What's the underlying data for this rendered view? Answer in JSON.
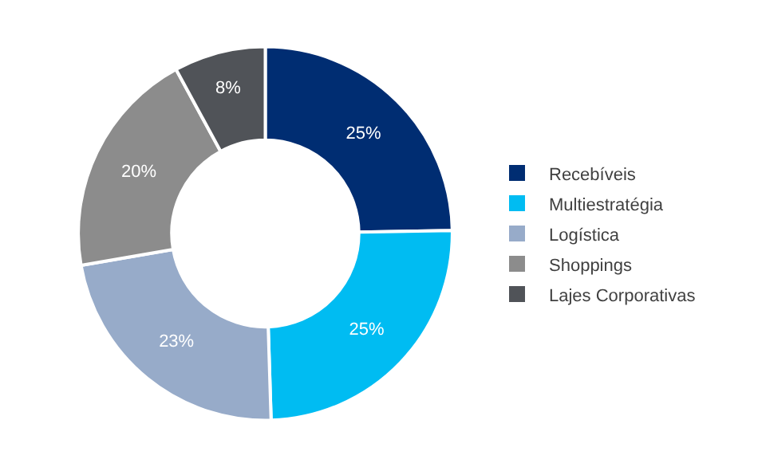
{
  "chart_data": {
    "type": "donut",
    "categories": [
      "Recebíveis",
      "Multiestratégia",
      "Logística",
      "Shoppings",
      "Lajes Corporativas"
    ],
    "values": [
      25,
      25,
      23,
      20,
      8
    ],
    "value_labels": [
      "25%",
      "25%",
      "23%",
      "20%",
      "8%"
    ],
    "colors": [
      "#002d72",
      "#00bcf2",
      "#97abc9",
      "#8c8c8c",
      "#505358"
    ],
    "legend": "right"
  }
}
